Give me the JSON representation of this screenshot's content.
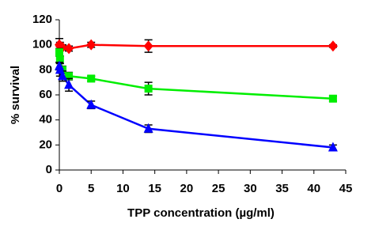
{
  "chart_data": {
    "type": "line",
    "x_label": "TPP concentration (µg/ml)",
    "y_label": "% survival",
    "x": [
      0,
      0.1,
      0.5,
      1.5,
      5,
      14,
      43
    ],
    "series": [
      {
        "name": "red",
        "color": "#ff0000",
        "marker": "diamond",
        "values": [
          100,
          99,
          98,
          97,
          100,
          99,
          99
        ],
        "errors": [
          5,
          3,
          2,
          2,
          2,
          5,
          1
        ]
      },
      {
        "name": "green",
        "color": "#00ee00",
        "marker": "square",
        "values": [
          94,
          88,
          80,
          75,
          73,
          65,
          57
        ],
        "errors": [
          3,
          3,
          3,
          3,
          2,
          5,
          2
        ]
      },
      {
        "name": "blue",
        "color": "#0000ff",
        "marker": "triangle",
        "values": [
          83,
          80,
          75,
          68,
          52,
          33,
          18
        ],
        "errors": [
          3,
          5,
          4,
          5,
          3,
          3,
          2
        ]
      }
    ],
    "xlim": [
      0,
      45
    ],
    "xticks": [
      0,
      5,
      10,
      15,
      20,
      25,
      30,
      35,
      40,
      45
    ],
    "ylim": [
      0,
      120
    ],
    "yticks": [
      0,
      20,
      40,
      60,
      80,
      100,
      120
    ]
  }
}
